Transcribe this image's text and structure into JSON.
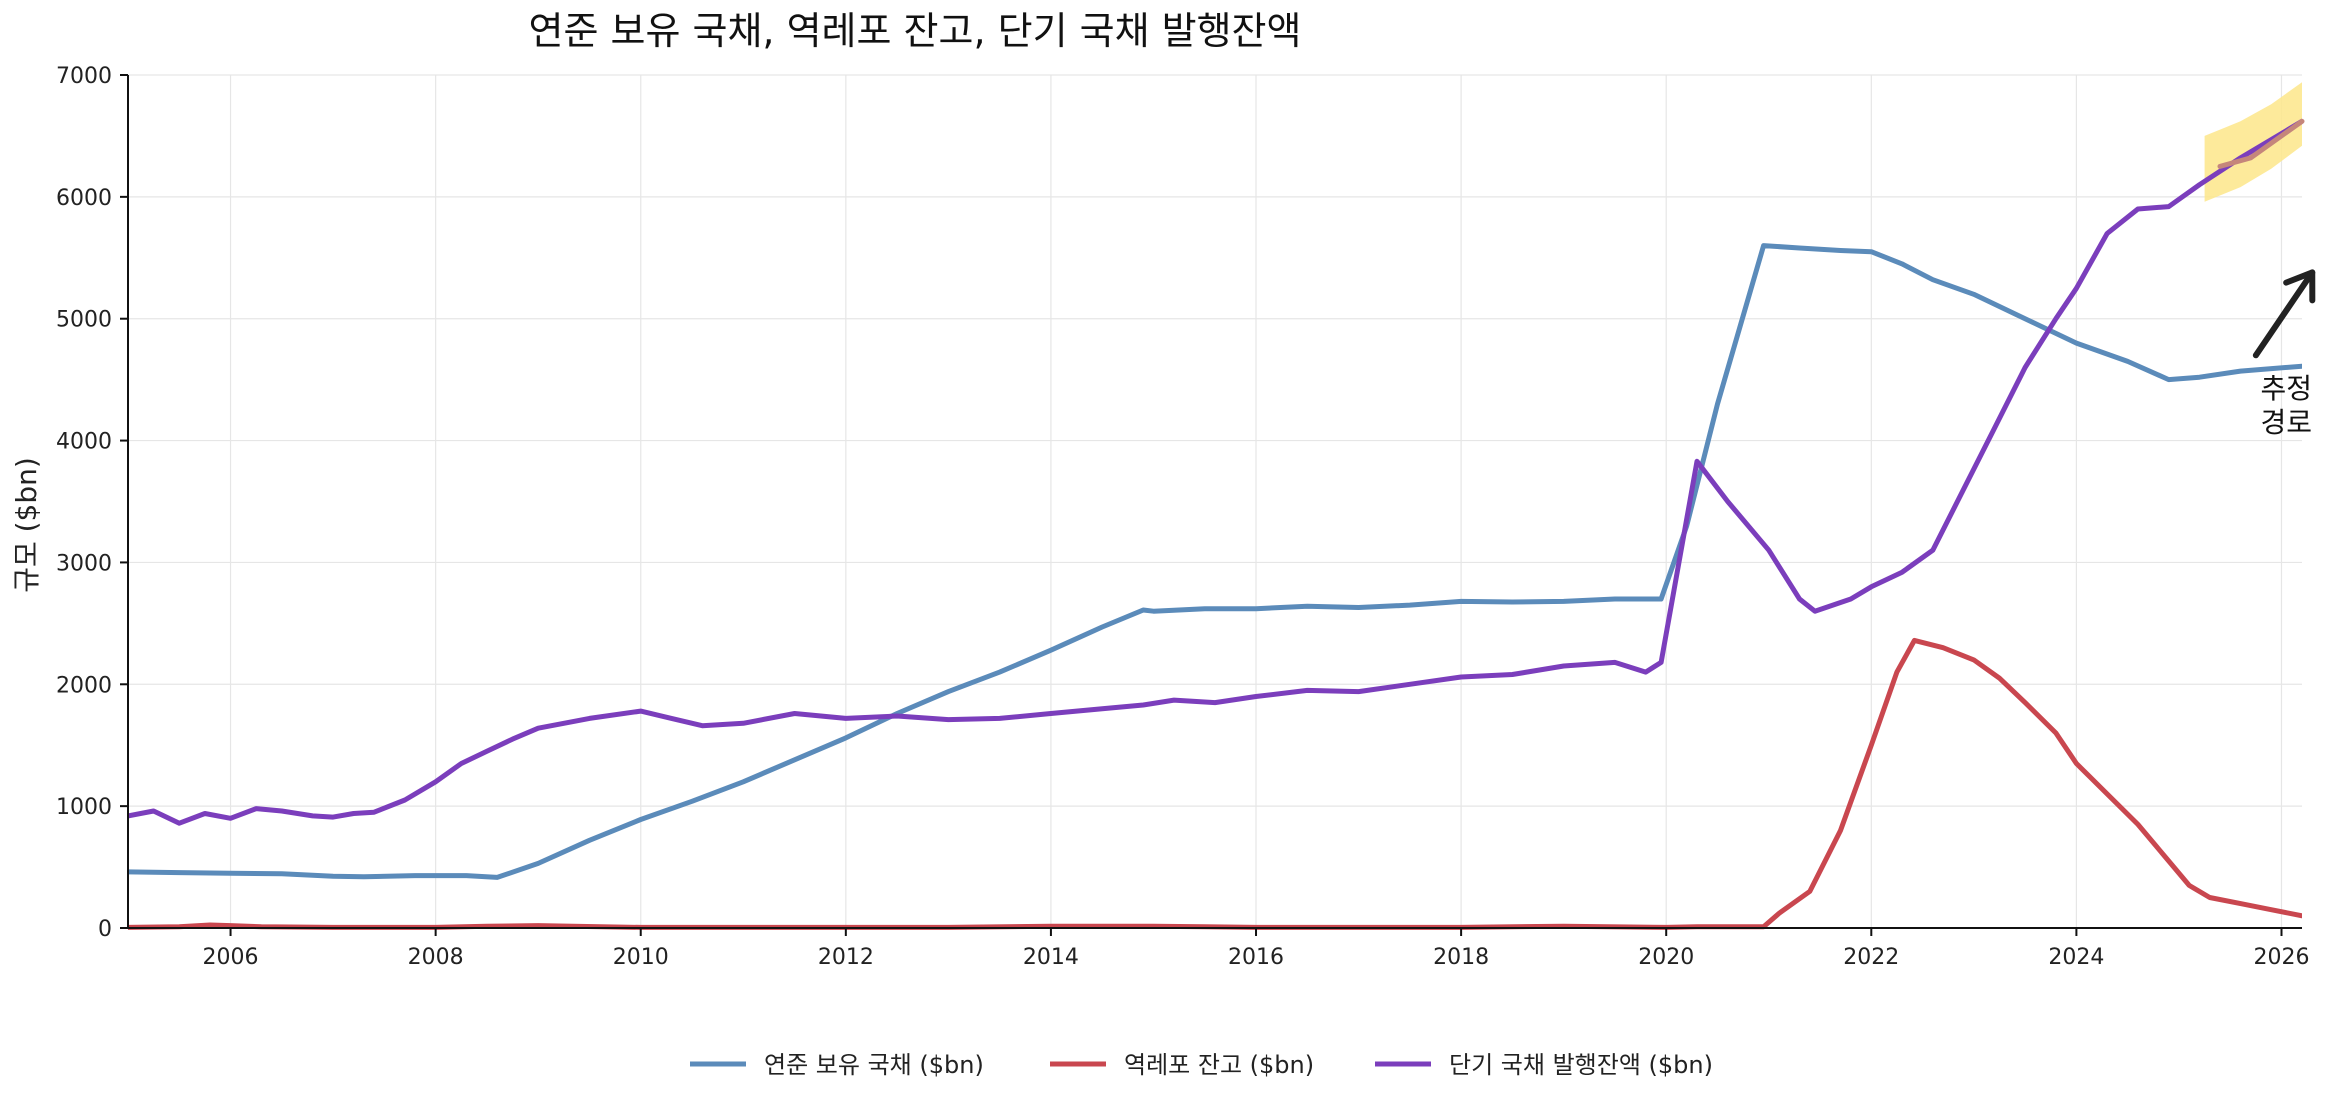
{
  "chart_data": {
    "type": "line",
    "title": "연준 보유 국채, 역레포 잔고, 단기 국채 발행잔액",
    "xlabel": "",
    "ylabel": "규모 ($bn)",
    "xlim": [
      2005.0,
      2026.2
    ],
    "ylim": [
      0,
      7000
    ],
    "x_ticks": [
      2006,
      2008,
      2010,
      2012,
      2014,
      2016,
      2018,
      2020,
      2022,
      2024,
      2026
    ],
    "x_tick_labels": [
      "2006",
      "2008",
      "2010",
      "2012",
      "2014",
      "2016",
      "2018",
      "2020",
      "2022",
      "2024",
      "2026"
    ],
    "y_ticks": [
      0,
      1000,
      2000,
      3000,
      4000,
      5000,
      6000,
      7000
    ],
    "y_tick_labels": [
      "0",
      "1000",
      "2000",
      "3000",
      "4000",
      "5000",
      "6000",
      "7000"
    ],
    "grid": true,
    "legend_position": "bottom-center",
    "colors": {
      "fed_treasury": "#5b8bba",
      "reverse_repo": "#c9474f",
      "tbills": "#7b3ebc",
      "projection_band": "#fde68a",
      "projection_line": "#c5867b",
      "annotation": "#222222"
    },
    "series": [
      {
        "name": "연준 보유 국채 ($bn)",
        "color_key": "fed_treasury",
        "points": [
          [
            2005.0,
            460
          ],
          [
            2005.5,
            455
          ],
          [
            2006.0,
            450
          ],
          [
            2006.5,
            445
          ],
          [
            2007.0,
            425
          ],
          [
            2007.3,
            420
          ],
          [
            2007.8,
            430
          ],
          [
            2008.3,
            430
          ],
          [
            2008.6,
            415
          ],
          [
            2009.0,
            530
          ],
          [
            2009.5,
            720
          ],
          [
            2010.0,
            890
          ],
          [
            2010.5,
            1040
          ],
          [
            2011.0,
            1200
          ],
          [
            2011.5,
            1380
          ],
          [
            2012.0,
            1560
          ],
          [
            2012.5,
            1760
          ],
          [
            2013.0,
            1940
          ],
          [
            2013.5,
            2100
          ],
          [
            2014.0,
            2280
          ],
          [
            2014.5,
            2470
          ],
          [
            2014.9,
            2610
          ],
          [
            2015.0,
            2600
          ],
          [
            2015.5,
            2620
          ],
          [
            2016.0,
            2620
          ],
          [
            2016.5,
            2640
          ],
          [
            2017.0,
            2630
          ],
          [
            2017.5,
            2650
          ],
          [
            2018.0,
            2680
          ],
          [
            2018.5,
            2675
          ],
          [
            2019.0,
            2680
          ],
          [
            2019.5,
            2700
          ],
          [
            2019.95,
            2700
          ],
          [
            2020.2,
            3300
          ],
          [
            2020.5,
            4300
          ],
          [
            2020.95,
            5600
          ],
          [
            2021.3,
            5580
          ],
          [
            2021.7,
            5560
          ],
          [
            2022.0,
            5550
          ],
          [
            2022.3,
            5450
          ],
          [
            2022.6,
            5320
          ],
          [
            2023.0,
            5200
          ],
          [
            2023.5,
            5000
          ],
          [
            2024.0,
            4800
          ],
          [
            2024.5,
            4650
          ],
          [
            2024.9,
            4500
          ],
          [
            2025.2,
            4520
          ],
          [
            2025.6,
            4570
          ],
          [
            2026.2,
            4610
          ]
        ]
      },
      {
        "name": "역레포 잔고 ($bn)",
        "color_key": "reverse_repo",
        "points": [
          [
            2005.0,
            5
          ],
          [
            2005.5,
            10
          ],
          [
            2005.8,
            25
          ],
          [
            2006.0,
            20
          ],
          [
            2006.3,
            10
          ],
          [
            2007.0,
            5
          ],
          [
            2008.0,
            5
          ],
          [
            2008.5,
            15
          ],
          [
            2009.0,
            20
          ],
          [
            2010.0,
            5
          ],
          [
            2011.0,
            5
          ],
          [
            2012.0,
            5
          ],
          [
            2013.0,
            5
          ],
          [
            2014.0,
            15
          ],
          [
            2015.0,
            15
          ],
          [
            2015.5,
            10
          ],
          [
            2016.0,
            5
          ],
          [
            2017.0,
            5
          ],
          [
            2018.0,
            5
          ],
          [
            2019.0,
            15
          ],
          [
            2020.0,
            5
          ],
          [
            2020.3,
            10
          ],
          [
            2020.95,
            10
          ],
          [
            2021.1,
            120
          ],
          [
            2021.4,
            300
          ],
          [
            2021.7,
            800
          ],
          [
            2022.0,
            1500
          ],
          [
            2022.25,
            2100
          ],
          [
            2022.42,
            2360
          ],
          [
            2022.7,
            2300
          ],
          [
            2023.0,
            2200
          ],
          [
            2023.25,
            2050
          ],
          [
            2023.5,
            1850
          ],
          [
            2023.8,
            1600
          ],
          [
            2024.0,
            1350
          ],
          [
            2024.3,
            1100
          ],
          [
            2024.6,
            850
          ],
          [
            2024.9,
            550
          ],
          [
            2025.1,
            350
          ],
          [
            2025.3,
            250
          ],
          [
            2025.6,
            200
          ],
          [
            2025.9,
            150
          ],
          [
            2026.2,
            100
          ]
        ]
      },
      {
        "name": "단기 국채 발행잔액 ($bn)",
        "color_key": "tbills",
        "points": [
          [
            2005.0,
            920
          ],
          [
            2005.25,
            960
          ],
          [
            2005.5,
            860
          ],
          [
            2005.75,
            940
          ],
          [
            2006.0,
            900
          ],
          [
            2006.25,
            980
          ],
          [
            2006.5,
            960
          ],
          [
            2006.8,
            920
          ],
          [
            2007.0,
            910
          ],
          [
            2007.2,
            940
          ],
          [
            2007.4,
            950
          ],
          [
            2007.7,
            1050
          ],
          [
            2008.0,
            1200
          ],
          [
            2008.25,
            1350
          ],
          [
            2008.5,
            1450
          ],
          [
            2008.75,
            1550
          ],
          [
            2009.0,
            1640
          ],
          [
            2009.5,
            1720
          ],
          [
            2010.0,
            1780
          ],
          [
            2010.3,
            1720
          ],
          [
            2010.6,
            1660
          ],
          [
            2011.0,
            1680
          ],
          [
            2011.5,
            1760
          ],
          [
            2012.0,
            1720
          ],
          [
            2012.5,
            1740
          ],
          [
            2013.0,
            1710
          ],
          [
            2013.5,
            1720
          ],
          [
            2014.0,
            1760
          ],
          [
            2014.5,
            1800
          ],
          [
            2014.9,
            1830
          ],
          [
            2015.2,
            1870
          ],
          [
            2015.6,
            1850
          ],
          [
            2016.0,
            1900
          ],
          [
            2016.5,
            1950
          ],
          [
            2017.0,
            1940
          ],
          [
            2017.5,
            2000
          ],
          [
            2018.0,
            2060
          ],
          [
            2018.5,
            2080
          ],
          [
            2019.0,
            2150
          ],
          [
            2019.5,
            2180
          ],
          [
            2019.8,
            2100
          ],
          [
            2019.95,
            2180
          ],
          [
            2020.3,
            3830
          ],
          [
            2020.6,
            3500
          ],
          [
            2021.0,
            3100
          ],
          [
            2021.3,
            2700
          ],
          [
            2021.45,
            2600
          ],
          [
            2021.8,
            2700
          ],
          [
            2022.0,
            2800
          ],
          [
            2022.3,
            2920
          ],
          [
            2022.6,
            3100
          ],
          [
            2022.9,
            3600
          ],
          [
            2023.2,
            4100
          ],
          [
            2023.5,
            4600
          ],
          [
            2023.8,
            5000
          ],
          [
            2024.0,
            5250
          ],
          [
            2024.3,
            5700
          ],
          [
            2024.6,
            5900
          ],
          [
            2024.9,
            5920
          ],
          [
            2025.2,
            6100
          ],
          [
            2025.6,
            6320
          ],
          [
            2026.2,
            6620
          ]
        ]
      }
    ],
    "projection": {
      "band_upper": [
        [
          2025.25,
          6500
        ],
        [
          2025.6,
          6620
        ],
        [
          2025.9,
          6760
        ],
        [
          2026.2,
          6940
        ]
      ],
      "band_lower": [
        [
          2025.25,
          5960
        ],
        [
          2025.6,
          6080
        ],
        [
          2025.9,
          6230
        ],
        [
          2026.2,
          6420
        ]
      ],
      "line": [
        [
          2025.4,
          6250
        ],
        [
          2025.7,
          6320
        ],
        [
          2026.0,
          6500
        ],
        [
          2026.2,
          6620
        ]
      ]
    },
    "annotation": {
      "lines": [
        "추정",
        "경로"
      ],
      "arrow_from": [
        2025.75,
        4700
      ],
      "arrow_to": [
        2026.3,
        5380
      ]
    }
  }
}
